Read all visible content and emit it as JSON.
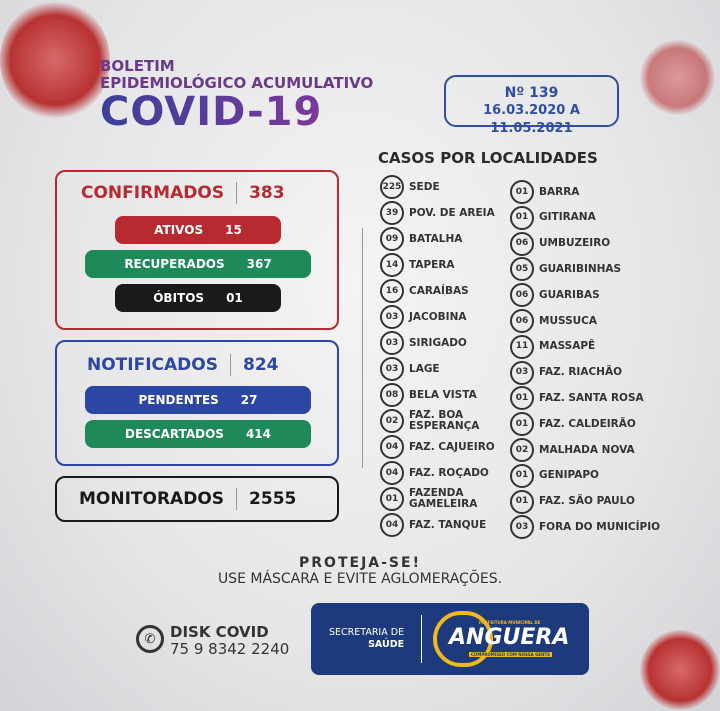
{
  "header": {
    "line1": "BOLETIM",
    "line2": "EPIDEMIOLÓGICO ACUMULATIVO",
    "title": "COVID-19",
    "number": "Nº 139",
    "period": "16.03.2020 A 11.05.2021"
  },
  "confirmados": {
    "label": "CONFIRMADOS",
    "value": "383",
    "ativos_label": "ATIVOS",
    "ativos": "15",
    "recuperados_label": "RECUPERADOS",
    "recuperados": "367",
    "obitos_label": "ÓBITOS",
    "obitos": "01"
  },
  "notificados": {
    "label": "NOTIFICADOS",
    "value": "824",
    "pendentes_label": "PENDENTES",
    "pendentes": "27",
    "descartados_label": "DESCARTADOS",
    "descartados": "414"
  },
  "monitorados": {
    "label": "MONITORADOS",
    "value": "2555"
  },
  "localidades": {
    "title": "CASOS POR LOCALIDADES",
    "left": [
      {
        "n": "225",
        "name": "SEDE"
      },
      {
        "n": "39",
        "name": "POV. DE AREIA"
      },
      {
        "n": "09",
        "name": "BATALHA"
      },
      {
        "n": "14",
        "name": "TAPERA"
      },
      {
        "n": "16",
        "name": "CARAÍBAS"
      },
      {
        "n": "03",
        "name": "JACOBINA"
      },
      {
        "n": "03",
        "name": "SIRIGADO"
      },
      {
        "n": "03",
        "name": "LAGE"
      },
      {
        "n": "08",
        "name": "BELA VISTA"
      },
      {
        "n": "02",
        "name": "FAZ. BOA ESPERANÇA"
      },
      {
        "n": "04",
        "name": "FAZ. CAJUEIRO"
      },
      {
        "n": "04",
        "name": "FAZ. ROÇADO"
      },
      {
        "n": "01",
        "name": "FAZENDA GAMELEIRA"
      },
      {
        "n": "04",
        "name": "FAZ. TANQUE"
      }
    ],
    "right": [
      {
        "n": "01",
        "name": "BARRA"
      },
      {
        "n": "01",
        "name": "GITIRANA"
      },
      {
        "n": "06",
        "name": "UMBUZEIRO"
      },
      {
        "n": "05",
        "name": "GUARIBINHAS"
      },
      {
        "n": "06",
        "name": "GUARIBAS"
      },
      {
        "n": "06",
        "name": "MUSSUCA"
      },
      {
        "n": "11",
        "name": "MASSAPÊ"
      },
      {
        "n": "03",
        "name": "FAZ. RIACHÃO"
      },
      {
        "n": "01",
        "name": "FAZ. SANTA ROSA"
      },
      {
        "n": "01",
        "name": "FAZ. CALDEIRÃO"
      },
      {
        "n": "02",
        "name": "MALHADA NOVA"
      },
      {
        "n": "01",
        "name": "GENIPAPO"
      },
      {
        "n": "01",
        "name": "FAZ. SÃO PAULO"
      },
      {
        "n": "03",
        "name": "FORA DO MUNICÍPIO"
      }
    ]
  },
  "footer": {
    "protect": "PROTEJA-SE!",
    "advice": "USE MÁSCARA E EVITE AGLOMERAÇÕES.",
    "disk_label": "DISK COVID",
    "phone": "75 9 8342 2240",
    "icon": "whatsapp-icon",
    "secretaria": "SECRETARIA DE",
    "saude": "SAÚDE",
    "logo_top": "PREFEITURA MUNICIPAL DE",
    "logo_name": "ANGUERA",
    "logo_bottom": "COMPROMISSO COM NOSSA GENTE"
  },
  "colors": {
    "red": "#b72a2f",
    "green": "#1e8a5a",
    "black": "#1a1a1a",
    "blue": "#2c47a3",
    "navy": "#1d3b7c",
    "gold": "#f0b81e"
  }
}
